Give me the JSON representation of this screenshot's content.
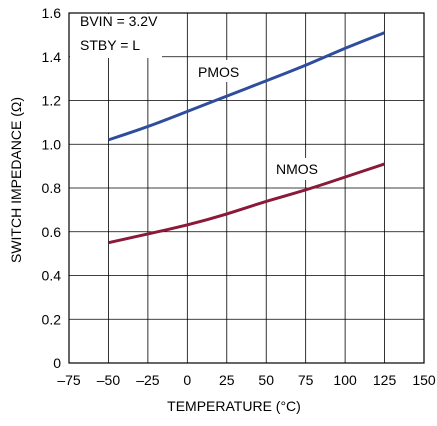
{
  "chart_data": {
    "type": "line",
    "title": "",
    "xlabel": "TEMPERATURE (°C)",
    "ylabel": "SWITCH IMPEDANCE (Ω)",
    "xlim": [
      -75,
      150
    ],
    "ylim": [
      0,
      1.6
    ],
    "grid": true,
    "x_ticks": [
      "–75",
      "–50",
      "–25",
      "0",
      "25",
      "50",
      "75",
      "100",
      "125",
      "150"
    ],
    "y_ticks": [
      "0",
      "0.2",
      "0.4",
      "0.6",
      "0.8",
      "1.0",
      "1.2",
      "1.4",
      "1.6"
    ],
    "x_tick_values": [
      -75,
      -50,
      -25,
      0,
      25,
      50,
      75,
      100,
      125,
      150
    ],
    "y_tick_values": [
      0,
      0.2,
      0.4,
      0.6,
      0.8,
      1.0,
      1.2,
      1.4,
      1.6
    ],
    "annotations": [
      "BVIN = 3.2V",
      "STBY = L"
    ],
    "series": [
      {
        "name": "PMOS",
        "color": "#2e4d9e",
        "x": [
          -50,
          -25,
          0,
          25,
          50,
          75,
          100,
          125
        ],
        "values": [
          1.02,
          1.08,
          1.15,
          1.22,
          1.29,
          1.36,
          1.44,
          1.51
        ]
      },
      {
        "name": "NMOS",
        "color": "#8b1a3a",
        "x": [
          -50,
          -25,
          0,
          25,
          50,
          75,
          100,
          125
        ],
        "values": [
          0.55,
          0.59,
          0.63,
          0.68,
          0.74,
          0.79,
          0.85,
          0.91
        ]
      }
    ]
  }
}
